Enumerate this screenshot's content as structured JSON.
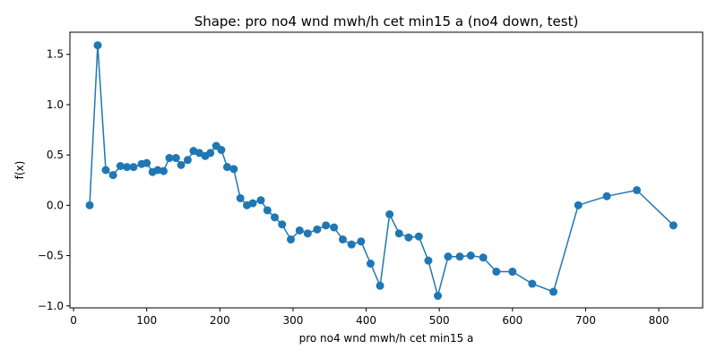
{
  "chart_data": {
    "type": "line",
    "title": "Shape: pro no4 wnd mwh/h cet min15 a (no4 down, test)",
    "xlabel": "pro no4 wnd mwh/h cet min15 a",
    "ylabel": "f(x)",
    "xlim": [
      -5,
      860
    ],
    "ylim": [
      -1.02,
      1.72
    ],
    "xticks": [
      0,
      100,
      200,
      300,
      400,
      500,
      600,
      700,
      800
    ],
    "yticks": [
      -1.0,
      -0.5,
      0.0,
      0.5,
      1.0,
      1.5
    ],
    "grid": false,
    "color": "#1f77b4",
    "marker": "circle",
    "series": [
      {
        "x": [
          22,
          33,
          44,
          54,
          64,
          73,
          82,
          93,
          100,
          108,
          115,
          123,
          131,
          140,
          147,
          156,
          164,
          172,
          180,
          187,
          195,
          202,
          210,
          219,
          228,
          237,
          245,
          256,
          265,
          275,
          285,
          297,
          309,
          320,
          333,
          345,
          356,
          368,
          380,
          393,
          406,
          419,
          432,
          445,
          458,
          472,
          485,
          498,
          512,
          528,
          543,
          560,
          578,
          600,
          627,
          656,
          690,
          729,
          770,
          820
        ],
        "y": [
          0.0,
          1.59,
          0.35,
          0.3,
          0.39,
          0.38,
          0.38,
          0.41,
          0.42,
          0.33,
          0.35,
          0.34,
          0.47,
          0.47,
          0.4,
          0.45,
          0.54,
          0.52,
          0.49,
          0.52,
          0.59,
          0.55,
          0.38,
          0.36,
          0.07,
          0.0,
          0.02,
          0.05,
          -0.05,
          -0.12,
          -0.19,
          -0.34,
          -0.25,
          -0.28,
          -0.24,
          -0.2,
          -0.22,
          -0.34,
          -0.39,
          -0.36,
          -0.58,
          -0.8,
          -0.09,
          -0.28,
          -0.32,
          -0.31,
          -0.55,
          -0.9,
          -0.51,
          -0.51,
          -0.5,
          -0.52,
          -0.66,
          -0.66,
          -0.78,
          -0.86,
          0.0,
          0.09,
          0.15,
          -0.2
        ]
      }
    ]
  }
}
